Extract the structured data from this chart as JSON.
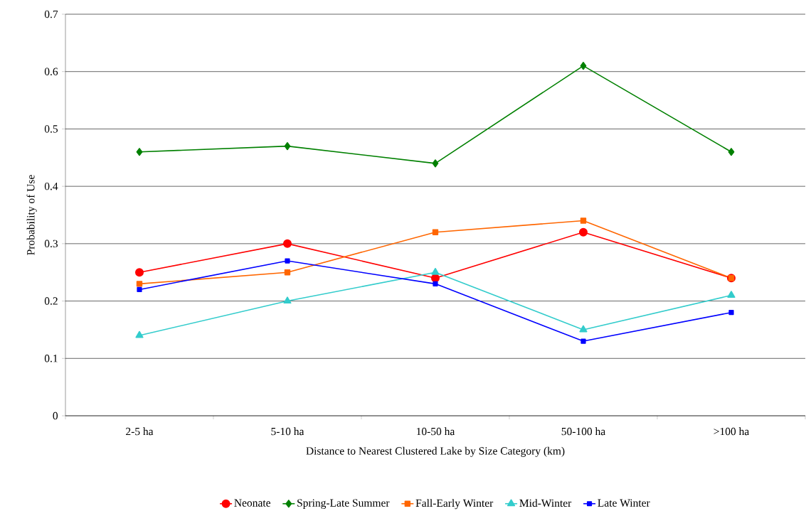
{
  "chart_data": {
    "type": "line",
    "xlabel": "Distance to Nearest Clustered Lake by Size Category (km)",
    "ylabel": "Probability of Use",
    "categories": [
      "2-5 ha",
      "5-10 ha",
      "10-50 ha",
      "50-100 ha",
      ">100 ha"
    ],
    "ylim": [
      0,
      0.7
    ],
    "yticks": [
      0,
      0.1,
      0.2,
      0.3,
      0.4,
      0.5,
      0.6,
      0.7
    ],
    "grid": "y",
    "legend": "bottom",
    "line_style": "solid",
    "series": [
      {
        "name": "Neonate",
        "color": "#ff0000",
        "marker": "circle",
        "values": [
          0.25,
          0.3,
          0.24,
          0.32,
          0.24
        ]
      },
      {
        "name": "Spring-Late Summer",
        "color": "#008000",
        "marker": "diamond",
        "values": [
          0.46,
          0.47,
          0.44,
          0.61,
          0.46
        ]
      },
      {
        "name": "Fall-Early Winter",
        "color": "#ff6600",
        "marker": "square",
        "values": [
          0.23,
          0.25,
          0.32,
          0.34,
          0.24
        ]
      },
      {
        "name": "Mid-Winter",
        "color": "#33cccc",
        "marker": "triangle",
        "values": [
          0.14,
          0.2,
          0.25,
          0.15,
          0.21
        ]
      },
      {
        "name": "Late Winter",
        "color": "#0000ff",
        "marker": "square",
        "values": [
          0.22,
          0.27,
          0.23,
          0.13,
          0.18
        ]
      }
    ]
  }
}
